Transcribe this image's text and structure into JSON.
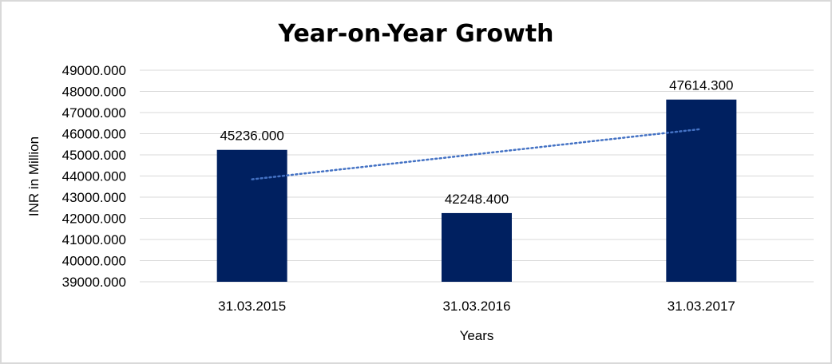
{
  "chart_data": {
    "type": "bar",
    "title": "Year-on-Year Growth",
    "xlabel": "Years",
    "ylabel": "INR in Million",
    "categories": [
      "31.03.2015",
      "31.03.2016",
      "31.03.2017"
    ],
    "values": [
      45236.0,
      42248.4,
      47614.3
    ],
    "data_labels": [
      "45236.000",
      "42248.400",
      "47614.300"
    ],
    "ylim": [
      39000,
      49000
    ],
    "yticks": [
      "39000.000",
      "40000.000",
      "41000.000",
      "42000.000",
      "43000.000",
      "44000.000",
      "45000.000",
      "46000.000",
      "47000.000",
      "48000.000",
      "49000.000"
    ],
    "grid": true,
    "legend": "none",
    "trendline": {
      "type": "linear",
      "style": "dotted",
      "color": "#4472C4"
    },
    "bar_color": "#002060"
  }
}
